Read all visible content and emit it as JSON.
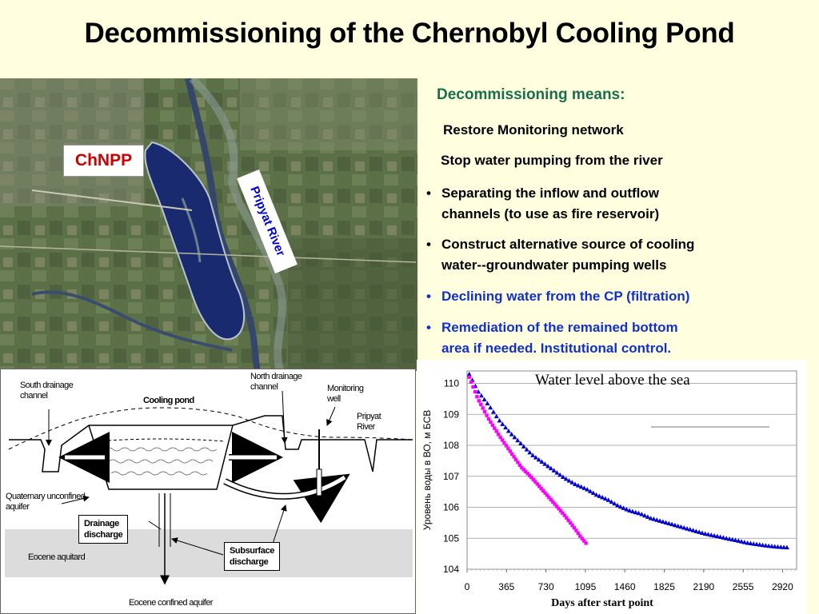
{
  "title": "Decommissioning  of the Chernobyl Cooling Pond",
  "photo": {
    "chnpp_label": "ChNPP",
    "river_label": "Pripyat River"
  },
  "means": {
    "heading": "Decommissioning means:",
    "items": [
      {
        "text": "Restore Monitoring network",
        "bullet": false
      },
      {
        "text": "Stop water pumping from the river",
        "bullet": false
      },
      {
        "text_lines": [
          "Separating the inflow and outflow",
          "channels  (to use as fire reservoir)"
        ],
        "bullet": true
      },
      {
        "text_lines": [
          "Construct alternative source of cooling",
          "water--groundwater pumping wells"
        ],
        "bullet": true
      },
      {
        "text": "Declining water from the CP (filtration)",
        "bullet": true
      },
      {
        "text_lines": [
          "Remediation of the remained bottom",
          "area  if needed. Institutional control."
        ],
        "bullet": true
      }
    ],
    "bullet_char": "•",
    "highlight_color": "#1030cc"
  },
  "diagram": {
    "south_drainage": [
      "South drainage",
      "channel"
    ],
    "cooling_pond": "Cooling pond",
    "north_drainage": [
      "North drainage",
      "channel"
    ],
    "monitoring_well": [
      "Monitoring",
      "well"
    ],
    "pripyat_river": [
      "Pripyat",
      "River"
    ],
    "quaternary": [
      "Quaternary unconfined",
      "aquifer"
    ],
    "drainage_discharge": [
      "Drainage",
      "discharge"
    ],
    "subsurface_discharge": [
      "Subsurface",
      "discharge"
    ],
    "eocene_aquitard": "Eocene aquitard",
    "eocene_confined": "Eocene confined  aquifer"
  },
  "chart_data": {
    "type": "scatter",
    "title": "Water level  above the sea",
    "xlabel": "Days after start point",
    "ylabel": "Уровень воды в ВО, м БСВ",
    "xlim": [
      0,
      3050
    ],
    "ylim": [
      104,
      110.4
    ],
    "x_ticks": [
      0,
      365,
      730,
      1095,
      1460,
      1825,
      2190,
      2555,
      2920
    ],
    "y_ticks": [
      104,
      105,
      106,
      107,
      108,
      109,
      110
    ],
    "grid": "horizontal",
    "series": [
      {
        "color": "#0000cc",
        "marker": "triangle",
        "x": [
          20,
          100,
          200,
          300,
          400,
          500,
          600,
          700,
          800,
          900,
          1000,
          1100,
          1200,
          1300,
          1400,
          1500,
          1600,
          1700,
          1800,
          1900,
          2000,
          2100,
          2200,
          2300,
          2400,
          2500,
          2600,
          2700,
          2800,
          2900,
          2980
        ],
        "y": [
          110.3,
          109.75,
          109.3,
          108.8,
          108.4,
          108.05,
          107.7,
          107.45,
          107.2,
          106.95,
          106.75,
          106.6,
          106.4,
          106.25,
          106.05,
          105.9,
          105.8,
          105.65,
          105.55,
          105.45,
          105.35,
          105.25,
          105.15,
          105.08,
          105.0,
          104.93,
          104.85,
          104.8,
          104.75,
          104.72,
          104.7
        ]
      },
      {
        "color": "#ff00ff",
        "marker": "square",
        "x": [
          20,
          100,
          200,
          300,
          400,
          500,
          600,
          700,
          800,
          900,
          1000,
          1050,
          1110
        ],
        "y": [
          110.2,
          109.5,
          108.85,
          108.3,
          107.8,
          107.3,
          106.95,
          106.55,
          106.15,
          105.75,
          105.3,
          105.05,
          104.8
        ]
      }
    ]
  }
}
